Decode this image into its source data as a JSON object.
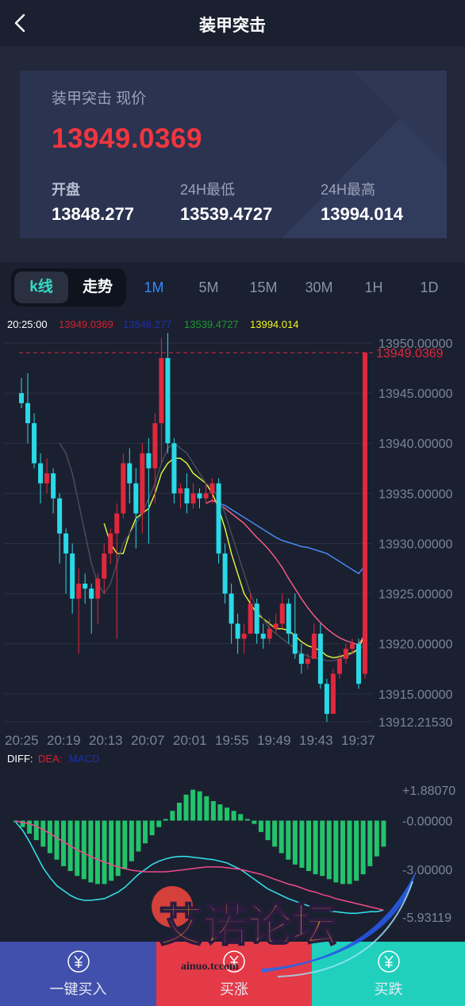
{
  "header": {
    "title": "装甲突击"
  },
  "summary": {
    "price_label": "装甲突击 现价",
    "price": "13949.0369",
    "open_label": "开盘",
    "open": "13848.277",
    "low_label": "24H最低",
    "low": "13539.4727",
    "high_label": "24H最高",
    "high": "13994.014"
  },
  "tabs": {
    "kline": "k线",
    "trend": "走势",
    "periods": [
      "1M",
      "5M",
      "15M",
      "30M",
      "1H",
      "1D"
    ],
    "active_period": "1M"
  },
  "kline_info": {
    "time": "20:25:00",
    "close": "13949.0369",
    "open": "13848.277",
    "low": "13539.4727",
    "high": "13994.014"
  },
  "chart_data": {
    "type": "candlestick",
    "x_labels": [
      "20:25",
      "20:19",
      "20:13",
      "20:07",
      "20:01",
      "19:55",
      "19:49",
      "19:43",
      "19:37"
    ],
    "y_labels": [
      "13950.00000",
      "13945.00000",
      "13940.00000",
      "13935.00000",
      "13930.00000",
      "13925.00000",
      "13920.00000",
      "13915.00000",
      "13912.21530"
    ],
    "y_range": [
      13912.2153,
      13950.0
    ],
    "current_price_label": "13949.0369",
    "candles": [
      [
        13945.0,
        13944.0,
        13946.5,
        13943.5
      ],
      [
        13944.0,
        13942.0,
        13947.0,
        13940.0
      ],
      [
        13942.0,
        13938.0,
        13943.0,
        13937.5
      ],
      [
        13938.0,
        13936.0,
        13939.0,
        13934.0
      ],
      [
        13936.0,
        13937.0,
        13938.5,
        13935.0
      ],
      [
        13937.0,
        13934.5,
        13937.5,
        13933.0
      ],
      [
        13934.5,
        13931.0,
        13935.0,
        13928.0
      ],
      [
        13931.0,
        13929.0,
        13931.5,
        13925.0
      ],
      [
        13929.0,
        13924.5,
        13930.0,
        13923.0
      ],
      [
        13924.5,
        13926.0,
        13927.5,
        13919.0
      ],
      [
        13926.0,
        13925.5,
        13927.0,
        13924.0
      ],
      [
        13925.5,
        13924.5,
        13926.0,
        13921.0
      ],
      [
        13924.5,
        13926.5,
        13927.0,
        13922.0
      ],
      [
        13926.5,
        13929.0,
        13930.0,
        13925.0
      ],
      [
        13929.0,
        13931.0,
        13931.5,
        13928.0
      ],
      [
        13931.0,
        13933.0,
        13934.0,
        13920.5
      ],
      [
        13933.0,
        13938.0,
        13939.0,
        13932.5
      ],
      [
        13938.0,
        13936.0,
        13939.5,
        13934.0
      ],
      [
        13936.0,
        13933.0,
        13937.5,
        13929.5
      ],
      [
        13933.0,
        13939.0,
        13940.0,
        13931.0
      ],
      [
        13939.0,
        13937.5,
        13940.5,
        13930.0
      ],
      [
        13937.5,
        13942.0,
        13943.0,
        13934.0
      ],
      [
        13942.0,
        13948.5,
        13950.5,
        13938.0
      ],
      [
        13948.5,
        13940.0,
        13951.0,
        13939.0
      ],
      [
        13940.0,
        13935.0,
        13940.5,
        13934.0
      ],
      [
        13935.0,
        13935.5,
        13936.0,
        13933.5
      ],
      [
        13935.5,
        13934.0,
        13937.0,
        13933.0
      ],
      [
        13934.0,
        13935.0,
        13936.0,
        13933.5
      ],
      [
        13935.0,
        13934.5,
        13935.5,
        13933.5
      ],
      [
        13934.5,
        13935.0,
        13936.0,
        13934.0
      ],
      [
        13935.0,
        13936.0,
        13936.5,
        13934.0
      ],
      [
        13936.0,
        13929.0,
        13936.5,
        13928.0
      ],
      [
        13929.0,
        13925.0,
        13930.0,
        13924.0
      ],
      [
        13925.0,
        13922.0,
        13926.0,
        13920.0
      ],
      [
        13922.0,
        13920.5,
        13923.0,
        13919.0
      ],
      [
        13920.5,
        13921.0,
        13922.0,
        13919.0
      ],
      [
        13921.0,
        13924.0,
        13925.0,
        13921.0
      ],
      [
        13924.0,
        13921.0,
        13924.5,
        13920.0
      ],
      [
        13921.0,
        13920.5,
        13922.0,
        13919.5
      ],
      [
        13920.5,
        13921.5,
        13922.5,
        13920.0
      ],
      [
        13921.5,
        13922.0,
        13923.0,
        13921.0
      ],
      [
        13922.0,
        13924.0,
        13925.0,
        13921.5
      ],
      [
        13924.0,
        13921.0,
        13924.5,
        13920.0
      ],
      [
        13921.0,
        13919.0,
        13925.0,
        13918.5
      ],
      [
        13919.0,
        13918.0,
        13920.0,
        13917.0
      ],
      [
        13918.0,
        13918.5,
        13919.0,
        13917.5
      ],
      [
        13918.5,
        13921.0,
        13922.0,
        13918.5
      ],
      [
        13921.0,
        13916.0,
        13922.0,
        13915.5
      ],
      [
        13916.0,
        13913.0,
        13916.5,
        13912.2
      ],
      [
        13913.0,
        13917.0,
        13917.5,
        13913.0
      ],
      [
        13917.0,
        13918.5,
        13919.0,
        13916.5
      ],
      [
        13918.5,
        13919.5,
        13920.0,
        13918.0
      ],
      [
        13919.5,
        13920.0,
        13920.5,
        13919.0
      ],
      [
        13920.0,
        13916.0,
        13920.5,
        13915.5
      ],
      [
        13917.0,
        13949.0369,
        13949.0369,
        13916.5
      ]
    ],
    "ma_series": [
      {
        "color": "#e3ff3a",
        "values": [
          null,
          null,
          null,
          null,
          null,
          null,
          null,
          null,
          null,
          null,
          null,
          null,
          null,
          13932,
          13930,
          13929,
          13929,
          13931,
          13932.5,
          13933,
          13933.5,
          13935,
          13937,
          13938,
          13938.5,
          13938.5,
          13938,
          13937,
          13936.5,
          13936,
          13935,
          13933.5,
          13931.5,
          13929,
          13927,
          13925,
          13924,
          13923,
          13922.5,
          13922,
          13921.5,
          13921.5,
          13921.3,
          13920.8,
          13920.2,
          13919.8,
          13919.6,
          13919.3,
          13918.8,
          13918.6,
          13918.7,
          13918.9,
          13919.1,
          13919.5,
          13921
        ]
      },
      {
        "color": "#ff5d8a",
        "values": [
          null,
          null,
          null,
          null,
          null,
          null,
          null,
          null,
          null,
          null,
          null,
          null,
          null,
          null,
          null,
          null,
          null,
          null,
          null,
          null,
          null,
          null,
          null,
          null,
          null,
          null,
          null,
          null,
          null,
          13934,
          13934.3,
          13934,
          13933.5,
          13933,
          13932.5,
          13932,
          13931.3,
          13930.6,
          13930,
          13929.3,
          13928.5,
          13927.6,
          13926.5,
          13925.5,
          13924.5,
          13923.6,
          13922.8,
          13922.1,
          13921.5,
          13921.0,
          13920.6,
          13920.3,
          13920.1,
          13919.9,
          13921
        ]
      },
      {
        "color": "#4a90ff",
        "values": [
          null,
          null,
          null,
          null,
          null,
          null,
          null,
          null,
          null,
          null,
          null,
          null,
          null,
          null,
          null,
          null,
          null,
          null,
          null,
          null,
          null,
          null,
          null,
          null,
          null,
          null,
          null,
          null,
          null,
          null,
          null,
          13934,
          13933.8,
          13933.4,
          13933,
          13932.6,
          13932.2,
          13931.8,
          13931.4,
          13931,
          13930.6,
          13930.3,
          13930.1,
          13929.9,
          13929.7,
          13929.6,
          13929.4,
          13929.2,
          13929,
          13928.6,
          13928.2,
          13927.8,
          13927.4,
          13927,
          13927.8
        ]
      },
      {
        "color": "#4a4f5e",
        "values": [
          null,
          null,
          null,
          null,
          null,
          null,
          13940,
          13939,
          13937,
          13934,
          13931,
          13928,
          13926,
          13925,
          13926,
          13928,
          13930,
          13931,
          13932,
          13933,
          13934.5,
          13936,
          13938,
          13939.5,
          13940,
          13939.5,
          13939,
          13938,
          13937,
          13936,
          13935.5,
          13934.5,
          13933,
          13931,
          13929,
          13927,
          13925,
          13923.5,
          13922.5,
          13921.5,
          13921,
          13920.5,
          13920,
          13919.5,
          13919,
          13918.8,
          13918.6,
          13918.5,
          13918.3,
          13918.3,
          13918.5,
          13918.7,
          13919,
          13919.3,
          13920
        ]
      }
    ],
    "macd": {
      "legend": {
        "diff": "DIFF:",
        "dea": "DEA:",
        "macd": "MACD"
      },
      "y_labels": [
        "+1.88070",
        "-0.00000",
        "-3.00000",
        "-5.93119"
      ],
      "y_range": [
        -5.93119,
        1.8807
      ],
      "histogram": [
        -0.1,
        -0.4,
        -0.8,
        -1.2,
        -1.6,
        -2,
        -2.4,
        -2.8,
        -3.1,
        -3.4,
        -3.6,
        -3.8,
        -3.9,
        -3.9,
        -3.7,
        -3.4,
        -3,
        -2.5,
        -1.9,
        -1.4,
        -0.9,
        -0.4,
        0.1,
        0.6,
        1.1,
        1.6,
        1.9,
        1.8,
        1.5,
        1.2,
        1,
        0.8,
        0.6,
        0.4,
        0.1,
        -0.2,
        -0.7,
        -1.2,
        -1.6,
        -2,
        -2.4,
        -2.7,
        -2.9,
        -3.1,
        -3.3,
        -3.4,
        -3.6,
        -3.8,
        -3.9,
        -3.9,
        -3.7,
        -3.3,
        -2.8,
        -2.2,
        -1.6
      ],
      "diff": [
        -0.1,
        -0.6,
        -1.3,
        -2.1,
        -2.9,
        -3.5,
        -4,
        -4.3,
        -4.6,
        -4.8,
        -4.9,
        -4.9,
        -4.85,
        -4.8,
        -4.6,
        -4.4,
        -4.1,
        -3.7,
        -3.3,
        -3,
        -2.7,
        -2.5,
        -2.35,
        -2.25,
        -2.2,
        -2.2,
        -2.25,
        -2.3,
        -2.35,
        -2.4,
        -2.5,
        -2.6,
        -2.8,
        -3,
        -3.3,
        -3.6,
        -3.9,
        -4.2,
        -4.4,
        -4.6,
        -4.8,
        -4.95,
        -5.1,
        -5.25,
        -5.35,
        -5.45,
        -5.55,
        -5.6,
        -5.65,
        -5.7,
        -5.7,
        -5.65,
        -5.6,
        -5.6,
        -5.5
      ],
      "dea": [
        -0.05,
        -0.1,
        -0.2,
        -0.35,
        -0.55,
        -0.8,
        -1.05,
        -1.3,
        -1.55,
        -1.8,
        -2,
        -2.2,
        -2.4,
        -2.55,
        -2.7,
        -2.85,
        -2.95,
        -3.05,
        -3.1,
        -3.15,
        -3.15,
        -3.15,
        -3.15,
        -3.1,
        -3.05,
        -3,
        -2.95,
        -2.9,
        -2.85,
        -2.85,
        -2.85,
        -2.9,
        -2.95,
        -3,
        -3.1,
        -3.2,
        -3.3,
        -3.45,
        -3.6,
        -3.75,
        -3.9,
        -4,
        -4.15,
        -4.3,
        -4.4,
        -4.55,
        -4.65,
        -4.8,
        -4.9,
        -5,
        -5.1,
        -5.2,
        -5.3,
        -5.4,
        -5.5
      ]
    }
  },
  "bottom": {
    "buy_one_click": "一键买入",
    "buy_up": "买涨",
    "buy_down": "买跌"
  },
  "watermark": {
    "cn": "艾诺论坛",
    "url": "ainuo.tccom"
  },
  "colors": {
    "up": "#e0283d",
    "down": "#2ad9e6",
    "accent": "#2e8bff",
    "bg": "#1b2030",
    "buy_blue": "#4150ac",
    "buy_red": "#e43a47",
    "buy_teal": "#20d0bc"
  }
}
